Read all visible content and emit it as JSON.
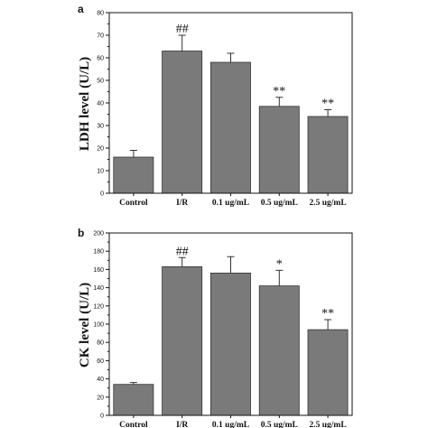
{
  "chart_data": [
    {
      "type": "bar",
      "panel": "a",
      "ylabel": "LDH level (U/L)",
      "ylim": [
        0,
        80
      ],
      "yticks": [
        0,
        10,
        20,
        30,
        40,
        50,
        60,
        70,
        80
      ],
      "categories": [
        "Control",
        "I/R",
        "0.1 ug/mL",
        "0.5 ug/mL",
        "2.5 ug/mL"
      ],
      "values": [
        16,
        63,
        58,
        38.5,
        34
      ],
      "errors": [
        3,
        7,
        4,
        4,
        3
      ],
      "annotations": [
        "",
        "##",
        "",
        "**",
        "**"
      ],
      "grid": false,
      "bar_color": "#7a7a7a"
    },
    {
      "type": "bar",
      "panel": "b",
      "ylabel": "CK level (U/L)",
      "ylim": [
        0,
        200
      ],
      "yticks": [
        0,
        20,
        40,
        60,
        80,
        100,
        120,
        140,
        160,
        180,
        200
      ],
      "categories": [
        "Control",
        "I/R",
        "0.1 ug/mL",
        "0.5 ug/mL",
        "2.5 ug/mL"
      ],
      "values": [
        34,
        163,
        156,
        142,
        94
      ],
      "errors": [
        2,
        10,
        18,
        17,
        11
      ],
      "annotations": [
        "",
        "##",
        "",
        "*",
        "**"
      ],
      "grid": false,
      "bar_color": "#7a7a7a"
    }
  ]
}
